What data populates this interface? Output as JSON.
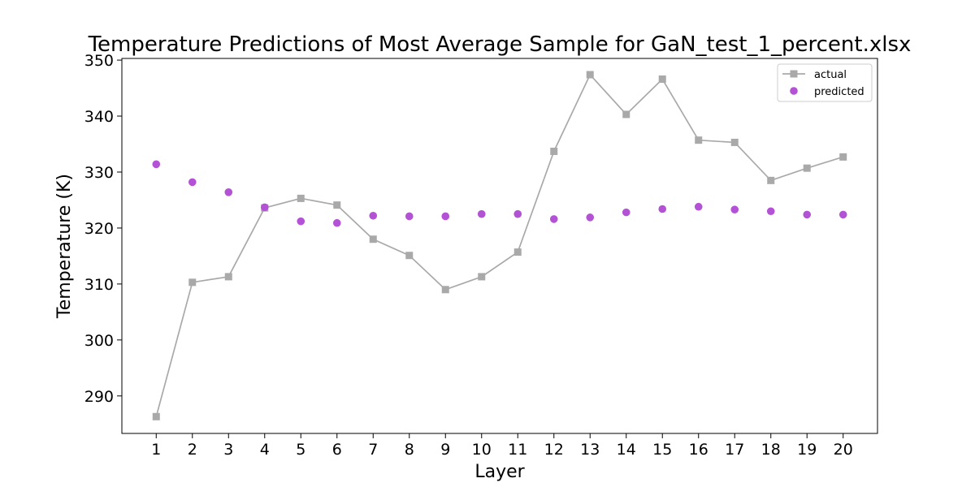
{
  "chart_data": {
    "type": "line",
    "title": "Temperature Predictions of Most Average Sample for GaN_test_1_percent.xlsx",
    "xlabel": "Layer",
    "ylabel": "Temperature (K)",
    "x": [
      1,
      2,
      3,
      4,
      5,
      6,
      7,
      8,
      9,
      10,
      11,
      12,
      13,
      14,
      15,
      16,
      17,
      18,
      19,
      20
    ],
    "xlim": [
      0.05,
      20.95
    ],
    "ylim": [
      283.3,
      350.3
    ],
    "yticks": [
      290,
      300,
      310,
      320,
      330,
      340,
      350
    ],
    "grid": false,
    "legend_position": "top-right",
    "series": [
      {
        "name": "actual",
        "style": "line-square",
        "color": "#a9a9a9",
        "values": [
          286.3,
          310.3,
          311.3,
          323.6,
          325.3,
          324.1,
          318.0,
          315.1,
          309.0,
          311.3,
          315.7,
          333.7,
          347.4,
          340.3,
          346.6,
          335.7,
          335.3,
          328.5,
          330.7,
          332.7
        ]
      },
      {
        "name": "predicted",
        "style": "scatter-circle",
        "color": "#b452d6",
        "values": [
          331.4,
          328.2,
          326.4,
          323.7,
          321.2,
          320.9,
          322.2,
          322.1,
          322.1,
          322.5,
          322.5,
          321.6,
          321.9,
          322.8,
          323.4,
          323.8,
          323.3,
          323.0,
          322.4,
          322.4
        ]
      }
    ]
  }
}
